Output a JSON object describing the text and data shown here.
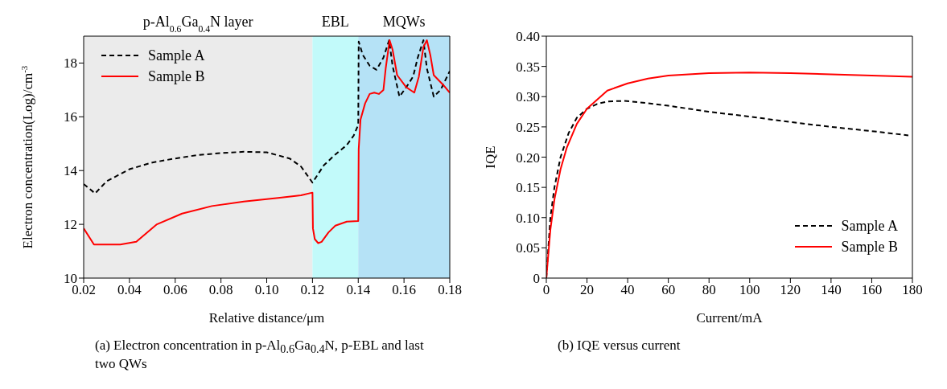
{
  "chart_data": [
    {
      "type": "line",
      "xlabel": "Relative distance/μm",
      "ylabel": "Electron concentration(Log)/cm$^{-3}$",
      "annotations": [
        "(a) Electron concentration in p-Al$_{0.6}$Ga$_{0.4}$N, p-EBL and last two QWs"
      ],
      "xlim": [
        0.02,
        0.18
      ],
      "xticks": [
        {
          "value": 0.02,
          "label": "0.02"
        },
        {
          "value": 0.04,
          "label": "0.04"
        },
        {
          "value": 0.06,
          "label": "0.06"
        },
        {
          "value": 0.08,
          "label": "0.08"
        },
        {
          "value": 0.1,
          "label": "0.10"
        },
        {
          "value": 0.12,
          "label": "0.12"
        },
        {
          "value": 0.14,
          "label": "0.14"
        },
        {
          "value": 0.16,
          "label": "0.16"
        },
        {
          "value": 0.18,
          "label": "0.18"
        }
      ],
      "ylim": [
        10,
        19
      ],
      "yticks": [
        10,
        12,
        14,
        16,
        18
      ],
      "legend": "top left",
      "marker": "none",
      "bands": [
        {
          "axis": "x",
          "from": 0.02,
          "to": 0.12,
          "label": "p-Al$_{0.6}$Ga$_{0.4}$N layer",
          "color": "#ebebeb"
        },
        {
          "axis": "x",
          "from": 0.12,
          "to": 0.14,
          "label": "EBL",
          "color": "#c2fafa"
        },
        {
          "axis": "x",
          "from": 0.14,
          "to": 0.18,
          "label": "MQWs",
          "color": "#b5e2f6"
        }
      ],
      "series": [
        {
          "name": "Sample A",
          "color": "#000000",
          "line_style": "dashed",
          "x": [
            0.02,
            0.025,
            0.03,
            0.04,
            0.05,
            0.06,
            0.07,
            0.08,
            0.09,
            0.1,
            0.11,
            0.115,
            0.12,
            0.125,
            0.13,
            0.135,
            0.138,
            0.14,
            0.1402,
            0.142,
            0.145,
            0.148,
            0.151,
            0.1535,
            0.155,
            0.158,
            0.161,
            0.164,
            0.166,
            0.1685,
            0.17,
            0.173,
            0.176,
            0.18
          ],
          "values": [
            13.5,
            13.15,
            13.6,
            14.05,
            14.3,
            14.45,
            14.58,
            14.65,
            14.7,
            14.68,
            14.45,
            14.15,
            13.55,
            14.2,
            14.6,
            14.95,
            15.3,
            15.7,
            18.8,
            18.3,
            17.9,
            17.75,
            18.2,
            18.85,
            17.9,
            16.75,
            17.1,
            17.5,
            18.2,
            18.85,
            17.8,
            16.75,
            17.0,
            17.7
          ]
        },
        {
          "name": "Sample B",
          "color": "#ff0000",
          "line_style": "solid",
          "x": [
            0.02,
            0.0245,
            0.036,
            0.043,
            0.052,
            0.063,
            0.076,
            0.09,
            0.105,
            0.115,
            0.12,
            0.1202,
            0.121,
            0.1225,
            0.124,
            0.127,
            0.13,
            0.135,
            0.14,
            0.1402,
            0.141,
            0.143,
            0.145,
            0.147,
            0.149,
            0.151,
            0.152,
            0.1537,
            0.155,
            0.157,
            0.161,
            0.1645,
            0.1665,
            0.1685,
            0.17,
            0.1715,
            0.173,
            0.177,
            0.18
          ],
          "values": [
            11.85,
            11.25,
            11.25,
            11.35,
            12.0,
            12.4,
            12.68,
            12.85,
            12.98,
            13.08,
            13.18,
            11.85,
            11.45,
            11.3,
            11.35,
            11.7,
            11.95,
            12.1,
            12.12,
            14.8,
            15.9,
            16.5,
            16.85,
            16.9,
            16.85,
            17.0,
            17.8,
            18.85,
            18.5,
            17.55,
            17.1,
            16.9,
            17.5,
            18.6,
            18.85,
            18.3,
            17.55,
            17.2,
            16.9
          ]
        }
      ]
    },
    {
      "type": "line",
      "xlabel": "Current/mA",
      "ylabel": "IQE",
      "annotations": [
        "(b) IQE versus current"
      ],
      "xlim": [
        0,
        180
      ],
      "xticks": [
        0,
        20,
        40,
        60,
        80,
        100,
        120,
        140,
        160,
        180
      ],
      "ylim": [
        0,
        0.4
      ],
      "yticks": [
        0,
        {
          "value": 0.05,
          "label": "0.05"
        },
        {
          "value": 0.1,
          "label": "0.10"
        },
        {
          "value": 0.15,
          "label": "0.15"
        },
        {
          "value": 0.2,
          "label": "0.20"
        },
        {
          "value": 0.25,
          "label": "0.25"
        },
        {
          "value": 0.3,
          "label": "0.30"
        },
        {
          "value": 0.35,
          "label": "0.35"
        },
        {
          "value": 0.4,
          "label": "0.40"
        }
      ],
      "legend": "bottom right",
      "marker": "none",
      "series": [
        {
          "name": "Sample A",
          "color": "#000000",
          "line_style": "dashed",
          "x": [
            0,
            1,
            2,
            4,
            7,
            11,
            15,
            20,
            25,
            30,
            38,
            45,
            60,
            80,
            100,
            120,
            140,
            160,
            178
          ],
          "values": [
            0,
            0.05,
            0.1,
            0.15,
            0.2,
            0.24,
            0.265,
            0.28,
            0.288,
            0.292,
            0.293,
            0.291,
            0.285,
            0.275,
            0.267,
            0.258,
            0.25,
            0.243,
            0.236
          ]
        },
        {
          "name": "Sample B",
          "color": "#ff0000",
          "line_style": "solid",
          "x": [
            0,
            1,
            2,
            4,
            7,
            10,
            15,
            20,
            25,
            30,
            40,
            50,
            60,
            80,
            100,
            120,
            140,
            160,
            180
          ],
          "values": [
            0,
            0.04,
            0.08,
            0.13,
            0.18,
            0.215,
            0.255,
            0.28,
            0.295,
            0.31,
            0.322,
            0.33,
            0.335,
            0.339,
            0.34,
            0.339,
            0.337,
            0.335,
            0.333
          ]
        }
      ]
    }
  ]
}
